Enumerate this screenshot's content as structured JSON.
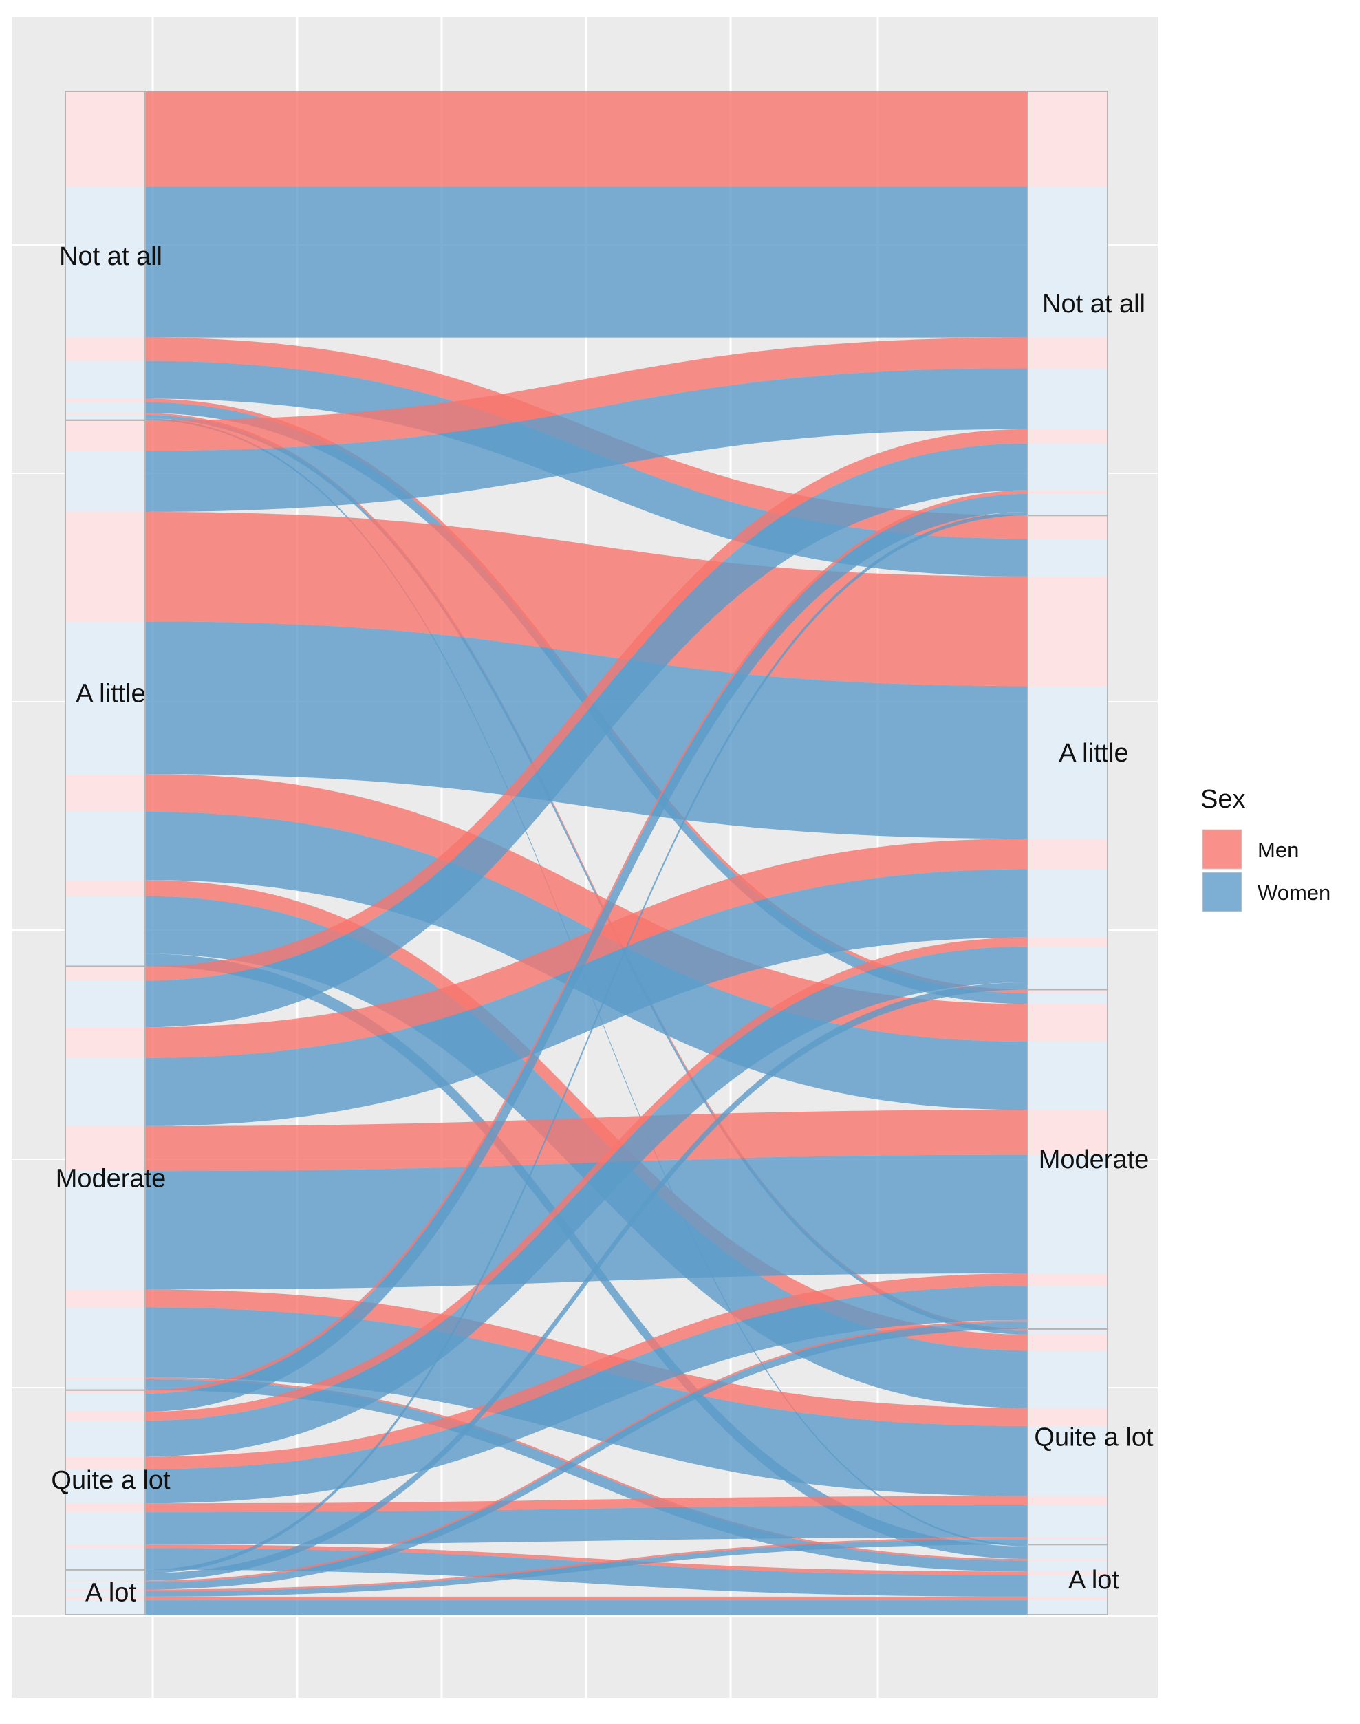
{
  "chart_data": {
    "type": "alluvial",
    "title": "",
    "xlabel": "",
    "ylabel": "",
    "left_axis_categories": [
      "Not at all",
      "A little",
      "Moderate",
      "Quite a lot",
      "A lot"
    ],
    "right_axis_categories": [
      "Not at all",
      "A little",
      "Moderate",
      "Quite a lot",
      "A lot"
    ],
    "legend": {
      "title": "Sex",
      "position": "right",
      "entries": [
        {
          "name": "Men",
          "color": "#F8766D"
        },
        {
          "name": "Women",
          "color": "#5B9BC8"
        }
      ]
    },
    "flows": [
      {
        "from": "Not at all",
        "to": "Not at all",
        "sex": "Men",
        "count": 53
      },
      {
        "from": "Not at all",
        "to": "Not at all",
        "sex": "Women",
        "count": 84
      },
      {
        "from": "Not at all",
        "to": "A little",
        "sex": "Men",
        "count": 13
      },
      {
        "from": "Not at all",
        "to": "A little",
        "sex": "Women",
        "count": 21
      },
      {
        "from": "Not at all",
        "to": "Moderate",
        "sex": "Men",
        "count": 2
      },
      {
        "from": "Not at all",
        "to": "Moderate",
        "sex": "Women",
        "count": 6
      },
      {
        "from": "Not at all",
        "to": "Quite a lot",
        "sex": "Men",
        "count": 1
      },
      {
        "from": "Not at all",
        "to": "Quite a lot",
        "sex": "Women",
        "count": 2
      },
      {
        "from": "Not at all",
        "to": "A lot",
        "sex": "Women",
        "count": 1
      },
      {
        "from": "A little",
        "to": "Not at all",
        "sex": "Men",
        "count": 17
      },
      {
        "from": "A little",
        "to": "Not at all",
        "sex": "Women",
        "count": 34
      },
      {
        "from": "A little",
        "to": "A little",
        "sex": "Men",
        "count": 61
      },
      {
        "from": "A little",
        "to": "A little",
        "sex": "Women",
        "count": 85
      },
      {
        "from": "A little",
        "to": "Moderate",
        "sex": "Men",
        "count": 21
      },
      {
        "from": "A little",
        "to": "Moderate",
        "sex": "Women",
        "count": 38
      },
      {
        "from": "A little",
        "to": "Quite a lot",
        "sex": "Men",
        "count": 9
      },
      {
        "from": "A little",
        "to": "Quite a lot",
        "sex": "Women",
        "count": 32
      },
      {
        "from": "A little",
        "to": "A lot",
        "sex": "Women",
        "count": 7
      },
      {
        "from": "Moderate",
        "to": "Not at all",
        "sex": "Men",
        "count": 8
      },
      {
        "from": "Moderate",
        "to": "Not at all",
        "sex": "Women",
        "count": 26
      },
      {
        "from": "Moderate",
        "to": "A little",
        "sex": "Men",
        "count": 17
      },
      {
        "from": "Moderate",
        "to": "A little",
        "sex": "Women",
        "count": 38
      },
      {
        "from": "Moderate",
        "to": "Moderate",
        "sex": "Men",
        "count": 25
      },
      {
        "from": "Moderate",
        "to": "Moderate",
        "sex": "Women",
        "count": 66
      },
      {
        "from": "Moderate",
        "to": "Quite a lot",
        "sex": "Men",
        "count": 10
      },
      {
        "from": "Moderate",
        "to": "Quite a lot",
        "sex": "Women",
        "count": 39
      },
      {
        "from": "Moderate",
        "to": "A lot",
        "sex": "Men",
        "count": 1
      },
      {
        "from": "Moderate",
        "to": "A lot",
        "sex": "Women",
        "count": 6
      },
      {
        "from": "Quite a lot",
        "to": "Not at all",
        "sex": "Men",
        "count": 2
      },
      {
        "from": "Quite a lot",
        "to": "Not at all",
        "sex": "Women",
        "count": 10
      },
      {
        "from": "Quite a lot",
        "to": "A little",
        "sex": "Men",
        "count": 5
      },
      {
        "from": "Quite a lot",
        "to": "A little",
        "sex": "Women",
        "count": 20
      },
      {
        "from": "Quite a lot",
        "to": "Moderate",
        "sex": "Men",
        "count": 7
      },
      {
        "from": "Quite a lot",
        "to": "Moderate",
        "sex": "Women",
        "count": 19
      },
      {
        "from": "Quite a lot",
        "to": "Quite a lot",
        "sex": "Men",
        "count": 5
      },
      {
        "from": "Quite a lot",
        "to": "Quite a lot",
        "sex": "Women",
        "count": 18
      },
      {
        "from": "Quite a lot",
        "to": "A lot",
        "sex": "Men",
        "count": 2
      },
      {
        "from": "Quite a lot",
        "to": "A lot",
        "sex": "Women",
        "count": 12
      },
      {
        "from": "A lot",
        "to": "Not at all",
        "sex": "Women",
        "count": 2
      },
      {
        "from": "A lot",
        "to": "A little",
        "sex": "Women",
        "count": 4
      },
      {
        "from": "A lot",
        "to": "Moderate",
        "sex": "Men",
        "count": 1
      },
      {
        "from": "A lot",
        "to": "Moderate",
        "sex": "Women",
        "count": 4
      },
      {
        "from": "A lot",
        "to": "Quite a lot",
        "sex": "Men",
        "count": 1
      },
      {
        "from": "A lot",
        "to": "Quite a lot",
        "sex": "Women",
        "count": 3
      },
      {
        "from": "A lot",
        "to": "A lot",
        "sex": "Men",
        "count": 2
      },
      {
        "from": "A lot",
        "to": "A lot",
        "sex": "Women",
        "count": 8
      }
    ]
  }
}
